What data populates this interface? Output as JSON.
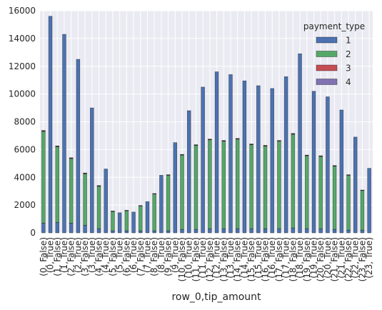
{
  "chart_data": {
    "type": "bar",
    "stacked": true,
    "xlabel": "row_0,tip_amount",
    "ylabel": "",
    "ylim": [
      0,
      16000
    ],
    "yticks": [
      0,
      2000,
      4000,
      6000,
      8000,
      10000,
      12000,
      14000,
      16000
    ],
    "grid": true,
    "legend_title": "payment_type",
    "legend_placement": "top-right",
    "categories": [
      "(0, False)",
      "(0, True)",
      "(1, False)",
      "(1, True)",
      "(2, False)",
      "(2, True)",
      "(3, False)",
      "(3, True)",
      "(4, False)",
      "(4, True)",
      "(5, False)",
      "(5, True)",
      "(6, False)",
      "(6, True)",
      "(7, False)",
      "(7, True)",
      "(8, False)",
      "(8, True)",
      "(9, False)",
      "(9, True)",
      "(10, False)",
      "(10, True)",
      "(11, False)",
      "(11, True)",
      "(12, False)",
      "(12, True)",
      "(13, False)",
      "(13, True)",
      "(14, False)",
      "(14, True)",
      "(15, False)",
      "(15, True)",
      "(16, False)",
      "(16, True)",
      "(17, False)",
      "(17, True)",
      "(18, False)",
      "(18, True)",
      "(19, False)",
      "(19, True)",
      "(20, False)",
      "(20, True)",
      "(21, False)",
      "(21, True)",
      "(22, False)",
      "(22, True)",
      "(23, False)",
      "(23, True)"
    ],
    "series": [
      {
        "name": "1",
        "color": "#4c72b0",
        "values": [
          700,
          15600,
          750,
          14300,
          700,
          12500,
          550,
          9000,
          300,
          4600,
          150,
          1450,
          150,
          1500,
          150,
          2250,
          150,
          4150,
          150,
          6500,
          250,
          8800,
          250,
          10500,
          300,
          11600,
          300,
          11400,
          300,
          10950,
          300,
          10600,
          300,
          10400,
          300,
          11250,
          350,
          12900,
          300,
          10200,
          300,
          9800,
          250,
          8850,
          200,
          6900,
          200,
          4650
        ]
      },
      {
        "name": "2",
        "color": "#55a868",
        "values": [
          6600,
          0,
          5450,
          0,
          4650,
          0,
          3700,
          0,
          3050,
          0,
          1400,
          0,
          1450,
          0,
          1800,
          0,
          2650,
          0,
          4000,
          0,
          5350,
          0,
          6050,
          0,
          6400,
          0,
          6300,
          0,
          6450,
          0,
          6050,
          0,
          5950,
          0,
          6300,
          0,
          6750,
          0,
          5250,
          0,
          5200,
          0,
          4550,
          0,
          3950,
          0,
          2850,
          0
        ]
      },
      {
        "name": "3",
        "color": "#c44e52",
        "values": [
          50,
          0,
          40,
          0,
          40,
          0,
          40,
          0,
          40,
          0,
          15,
          0,
          15,
          0,
          15,
          0,
          20,
          0,
          25,
          0,
          30,
          0,
          30,
          0,
          35,
          0,
          35,
          0,
          35,
          0,
          35,
          0,
          35,
          0,
          35,
          0,
          40,
          0,
          35,
          0,
          35,
          0,
          30,
          0,
          25,
          0,
          20,
          0
        ]
      },
      {
        "name": "4",
        "color": "#8172b2",
        "values": [
          30,
          0,
          25,
          0,
          25,
          0,
          25,
          0,
          20,
          0,
          10,
          0,
          10,
          0,
          10,
          0,
          15,
          0,
          15,
          0,
          20,
          0,
          20,
          0,
          20,
          0,
          20,
          0,
          20,
          0,
          20,
          0,
          20,
          0,
          20,
          0,
          25,
          0,
          20,
          0,
          20,
          0,
          20,
          0,
          15,
          0,
          15,
          0
        ]
      }
    ]
  },
  "colors": {
    "plot_background": "#eaeaf2",
    "grid": "#ffffff",
    "text": "#262626"
  }
}
